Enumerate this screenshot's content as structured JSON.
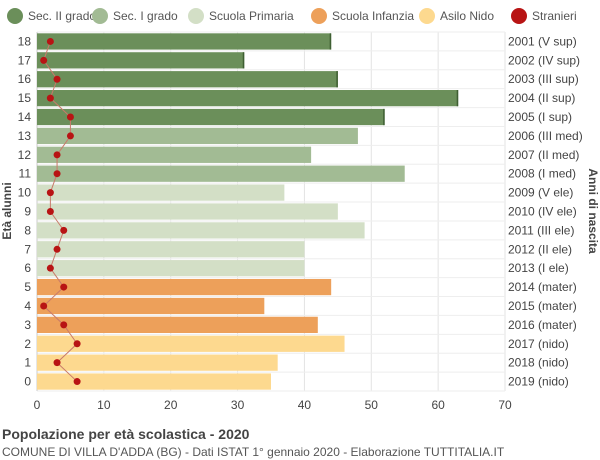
{
  "chart_data": {
    "type": "bar",
    "orientation": "horizontal",
    "title": "Popolazione per età scolastica - 2020",
    "subtitle": "COMUNE DI VILLA D'ADDA (BG) - Dati ISTAT 1° gennaio 2020 - Elaborazione TUTTITALIA.IT",
    "ylabel_left": "Età alunni",
    "ylabel_right": "Anni di nascita",
    "xlim": [
      0,
      70
    ],
    "xticks": [
      0,
      10,
      20,
      30,
      40,
      50,
      60,
      70
    ],
    "grid": true,
    "legend_position": "top",
    "legend": [
      {
        "name": "Sec. II grado",
        "color": "#6b8f5a"
      },
      {
        "name": "Sec. I grado",
        "color": "#a2bb94"
      },
      {
        "name": "Scuola Primaria",
        "color": "#d3dfc6"
      },
      {
        "name": "Scuola Infanzia",
        "color": "#eda05a"
      },
      {
        "name": "Asilo Nido",
        "color": "#fdd98f"
      },
      {
        "name": "Stranieri",
        "color": "#b81414"
      }
    ],
    "rows": [
      {
        "age": "18",
        "year": "2001 (V sup)",
        "value": 44,
        "stranieri": 2,
        "group": 0
      },
      {
        "age": "17",
        "year": "2002 (IV sup)",
        "value": 31,
        "stranieri": 1,
        "group": 0
      },
      {
        "age": "16",
        "year": "2003 (III sup)",
        "value": 45,
        "stranieri": 3,
        "group": 0
      },
      {
        "age": "15",
        "year": "2004 (II sup)",
        "value": 63,
        "stranieri": 2,
        "group": 0
      },
      {
        "age": "14",
        "year": "2005 (I sup)",
        "value": 52,
        "stranieri": 5,
        "group": 0
      },
      {
        "age": "13",
        "year": "2006 (III med)",
        "value": 48,
        "stranieri": 5,
        "group": 1
      },
      {
        "age": "12",
        "year": "2007 (II med)",
        "value": 41,
        "stranieri": 3,
        "group": 1
      },
      {
        "age": "11",
        "year": "2008 (I med)",
        "value": 55,
        "stranieri": 3,
        "group": 1
      },
      {
        "age": "10",
        "year": "2009 (V ele)",
        "value": 37,
        "stranieri": 2,
        "group": 2
      },
      {
        "age": "9",
        "year": "2010 (IV ele)",
        "value": 45,
        "stranieri": 2,
        "group": 2
      },
      {
        "age": "8",
        "year": "2011 (III ele)",
        "value": 49,
        "stranieri": 4,
        "group": 2
      },
      {
        "age": "7",
        "year": "2012 (II ele)",
        "value": 40,
        "stranieri": 3,
        "group": 2
      },
      {
        "age": "6",
        "year": "2013 (I ele)",
        "value": 40,
        "stranieri": 2,
        "group": 2
      },
      {
        "age": "5",
        "year": "2014 (mater)",
        "value": 44,
        "stranieri": 4,
        "group": 3
      },
      {
        "age": "4",
        "year": "2015 (mater)",
        "value": 34,
        "stranieri": 1,
        "group": 3
      },
      {
        "age": "3",
        "year": "2016 (mater)",
        "value": 42,
        "stranieri": 4,
        "group": 3
      },
      {
        "age": "2",
        "year": "2017 (nido)",
        "value": 46,
        "stranieri": 6,
        "group": 4
      },
      {
        "age": "1",
        "year": "2018 (nido)",
        "value": 36,
        "stranieri": 3,
        "group": 4
      },
      {
        "age": "0",
        "year": "2019 (nido)",
        "value": 35,
        "stranieri": 6,
        "group": 4
      }
    ]
  }
}
